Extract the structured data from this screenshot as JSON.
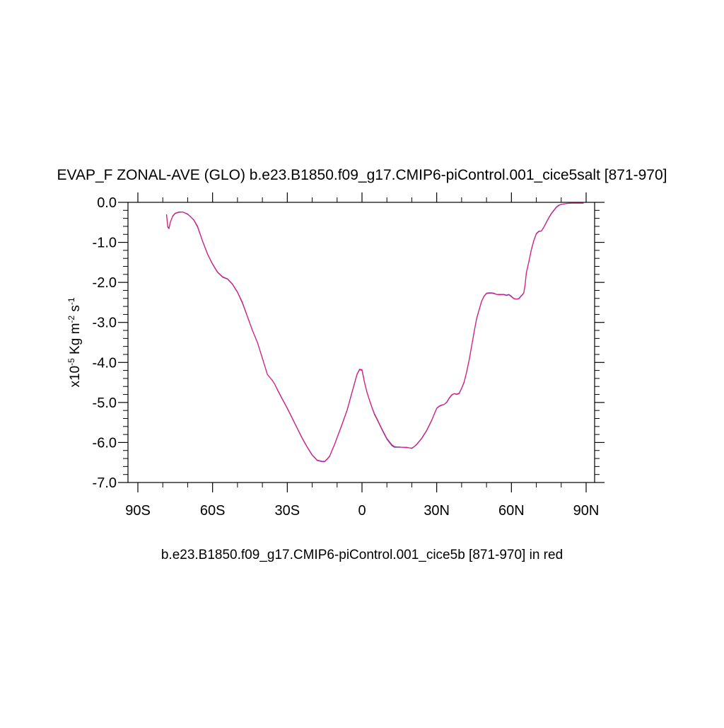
{
  "chart_data": {
    "type": "line",
    "title": "EVAP_F ZONAL-AVE (GLO) b.e23.B1850.f09_g17.CMIP6-piControl.001_cice5salt [871-970]",
    "subtitle": "b.e23.B1850.f09_g17.CMIP6-piControl.001_cice5b [871-970] in red",
    "ylabel": {
      "prefix": "x10",
      "exp1": "-5",
      "unit_a": " Kg m",
      "exp2": "-2",
      "unit_b": " s",
      "exp3": "-1"
    },
    "xlim": [
      -90,
      90
    ],
    "ylim": [
      -7.0,
      0.0
    ],
    "x_ticks": [
      -90,
      -60,
      -30,
      0,
      30,
      60,
      90
    ],
    "x_tick_labels": [
      "90S",
      "60S",
      "30S",
      "0",
      "30N",
      "60N",
      "90N"
    ],
    "y_ticks": [
      0,
      -1,
      -2,
      -3,
      -4,
      -5,
      -6,
      -7
    ],
    "y_tick_labels": [
      "0.0",
      "-1.0",
      "-2.0",
      "-3.0",
      "-4.0",
      "-5.0",
      "-6.0",
      "-7.0"
    ],
    "grid": false,
    "series": [
      {
        "color": "#4a4ad0",
        "x": [
          -78.5,
          -78.0,
          -77.5,
          -77.0,
          -76.0,
          -75.0,
          -73.5,
          -72.0,
          -70.0,
          -69.0,
          -67.5,
          -66.0,
          -64.0,
          -62.0,
          -60.0,
          -58.0,
          -56.0,
          -54.0,
          -52.0,
          -50.0,
          -48.0,
          -46.0,
          -44.0,
          -42.0,
          -40.0,
          -38.0,
          -36.0,
          -35.0,
          -34.0,
          -32.0,
          -30.0,
          -28.0,
          -26.0,
          -24.0,
          -22.0,
          -20.0,
          -18.0,
          -16.0,
          -15.0,
          -14.0,
          -13.0,
          -12.0,
          -11.0,
          -10.0,
          -9.0,
          -8.0,
          -6.0,
          -4.0,
          -2.0,
          -1.0,
          0.0,
          0.5,
          1.0,
          2.0,
          3.0,
          4.0,
          5.0,
          6.0,
          8.0,
          10.0,
          12.0,
          13.0,
          14.0,
          15.0,
          16.0,
          18.0,
          20.0,
          21.0,
          22.0,
          24.0,
          26.0,
          28.0,
          29.0,
          30.0,
          31.0,
          32.0,
          33.0,
          34.0,
          35.0,
          36.0,
          37.0,
          38.0,
          39.0,
          40.0,
          41.0,
          42.0,
          43.0,
          44.0,
          45.0,
          46.0,
          47.0,
          48.0,
          49.0,
          50.0,
          51.0,
          52.0,
          53.0,
          54.0,
          55.0,
          56.0,
          57.0,
          58.0,
          59.0,
          60.0,
          61.0,
          62.0,
          63.0,
          64.0,
          64.5,
          65.0,
          65.5,
          66.0,
          67.0,
          68.0,
          69.0,
          70.0,
          71.0,
          72.0,
          73.0,
          74.0,
          75.0,
          76.0,
          77.0,
          78.0,
          79.0,
          80.0,
          81.0,
          82.0,
          84.0,
          86.0,
          88.0,
          89.0
        ],
        "y": [
          -0.3,
          -0.6,
          -0.65,
          -0.5,
          -0.35,
          -0.28,
          -0.25,
          -0.24,
          -0.3,
          -0.35,
          -0.45,
          -0.62,
          -0.98,
          -1.3,
          -1.55,
          -1.75,
          -1.87,
          -1.92,
          -2.05,
          -2.25,
          -2.52,
          -2.86,
          -3.2,
          -3.5,
          -3.9,
          -4.3,
          -4.45,
          -4.55,
          -4.68,
          -4.92,
          -5.15,
          -5.4,
          -5.65,
          -5.9,
          -6.12,
          -6.32,
          -6.45,
          -6.48,
          -6.48,
          -6.42,
          -6.35,
          -6.2,
          -6.05,
          -5.88,
          -5.72,
          -5.55,
          -5.2,
          -4.75,
          -4.3,
          -4.18,
          -4.2,
          -4.35,
          -4.5,
          -4.75,
          -4.95,
          -5.13,
          -5.3,
          -5.42,
          -5.68,
          -5.92,
          -6.08,
          -6.12,
          -6.12,
          -6.12,
          -6.12,
          -6.12,
          -6.15,
          -6.1,
          -6.05,
          -5.9,
          -5.7,
          -5.45,
          -5.3,
          -5.15,
          -5.1,
          -5.07,
          -5.05,
          -5.0,
          -4.9,
          -4.82,
          -4.78,
          -4.8,
          -4.78,
          -4.65,
          -4.5,
          -4.25,
          -3.95,
          -3.6,
          -3.25,
          -2.92,
          -2.7,
          -2.48,
          -2.35,
          -2.28,
          -2.27,
          -2.27,
          -2.28,
          -2.3,
          -2.3,
          -2.3,
          -2.3,
          -2.32,
          -2.3,
          -2.35,
          -2.4,
          -2.42,
          -2.4,
          -2.33,
          -2.3,
          -2.25,
          -2.05,
          -1.75,
          -1.48,
          -1.18,
          -0.95,
          -0.78,
          -0.72,
          -0.72,
          -0.62,
          -0.5,
          -0.38,
          -0.28,
          -0.2,
          -0.12,
          -0.07,
          -0.05,
          -0.04,
          -0.03,
          -0.02,
          -0.02,
          -0.02,
          -0.02
        ]
      },
      {
        "color": "#e0207a",
        "x": [
          -78.5,
          -78.0,
          -77.5,
          -77.0,
          -76.0,
          -75.0,
          -73.5,
          -72.0,
          -70.0,
          -69.0,
          -67.5,
          -66.0,
          -64.0,
          -62.0,
          -60.0,
          -58.0,
          -56.0,
          -54.0,
          -52.0,
          -50.0,
          -48.0,
          -46.0,
          -44.0,
          -42.0,
          -40.0,
          -38.0,
          -36.0,
          -35.0,
          -34.0,
          -32.0,
          -30.0,
          -28.0,
          -26.0,
          -24.0,
          -22.0,
          -20.0,
          -18.0,
          -16.0,
          -15.0,
          -14.0,
          -13.0,
          -12.0,
          -11.0,
          -10.0,
          -9.0,
          -8.0,
          -6.0,
          -4.0,
          -2.0,
          -1.0,
          0.0,
          0.5,
          1.0,
          2.0,
          3.0,
          4.0,
          5.0,
          6.0,
          8.0,
          10.0,
          12.0,
          13.0,
          14.0,
          15.0,
          16.0,
          18.0,
          20.0,
          21.0,
          22.0,
          24.0,
          26.0,
          28.0,
          29.0,
          30.0,
          31.0,
          32.0,
          33.0,
          34.0,
          35.0,
          36.0,
          37.0,
          38.0,
          39.0,
          40.0,
          41.0,
          42.0,
          43.0,
          44.0,
          45.0,
          46.0,
          47.0,
          48.0,
          49.0,
          50.0,
          51.0,
          52.0,
          53.0,
          54.0,
          55.0,
          56.0,
          57.0,
          58.0,
          59.0,
          60.0,
          61.0,
          62.0,
          63.0,
          64.0,
          64.5,
          65.0,
          65.5,
          66.0,
          67.0,
          68.0,
          69.0,
          70.0,
          71.0,
          72.0,
          73.0,
          74.0,
          75.0,
          76.0,
          77.0,
          78.0,
          79.0,
          80.0,
          81.0,
          82.0,
          84.0,
          86.0,
          88.0,
          89.0
        ],
        "y": [
          -0.3,
          -0.62,
          -0.66,
          -0.5,
          -0.34,
          -0.27,
          -0.24,
          -0.24,
          -0.29,
          -0.35,
          -0.44,
          -0.6,
          -0.97,
          -1.29,
          -1.54,
          -1.74,
          -1.86,
          -1.91,
          -2.04,
          -2.24,
          -2.5,
          -2.85,
          -3.2,
          -3.5,
          -3.89,
          -4.3,
          -4.45,
          -4.55,
          -4.67,
          -4.91,
          -5.14,
          -5.39,
          -5.64,
          -5.89,
          -6.11,
          -6.31,
          -6.44,
          -6.47,
          -6.47,
          -6.41,
          -6.34,
          -6.19,
          -6.04,
          -5.87,
          -5.71,
          -5.54,
          -5.19,
          -4.74,
          -4.29,
          -4.17,
          -4.18,
          -4.33,
          -4.49,
          -4.74,
          -4.94,
          -5.12,
          -5.28,
          -5.4,
          -5.66,
          -5.9,
          -6.06,
          -6.1,
          -6.11,
          -6.11,
          -6.12,
          -6.13,
          -6.14,
          -6.1,
          -6.04,
          -5.89,
          -5.69,
          -5.44,
          -5.29,
          -5.14,
          -5.09,
          -5.06,
          -5.05,
          -4.99,
          -4.89,
          -4.81,
          -4.78,
          -4.79,
          -4.77,
          -4.64,
          -4.49,
          -4.24,
          -3.94,
          -3.59,
          -3.24,
          -2.91,
          -2.69,
          -2.47,
          -2.34,
          -2.27,
          -2.26,
          -2.26,
          -2.27,
          -2.3,
          -2.31,
          -2.31,
          -2.31,
          -2.33,
          -2.31,
          -2.36,
          -2.41,
          -2.42,
          -2.41,
          -2.34,
          -2.31,
          -2.26,
          -2.06,
          -1.76,
          -1.49,
          -1.19,
          -0.96,
          -0.79,
          -0.73,
          -0.72,
          -0.63,
          -0.51,
          -0.39,
          -0.29,
          -0.21,
          -0.13,
          -0.08,
          -0.05,
          -0.04,
          -0.03,
          -0.02,
          -0.02,
          -0.02,
          -0.02
        ]
      }
    ]
  }
}
